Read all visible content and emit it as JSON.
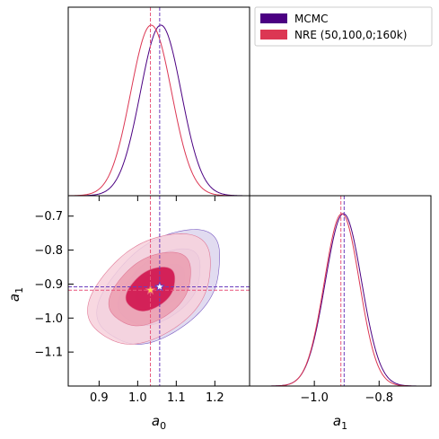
{
  "chart_data": {
    "type": "corner",
    "parameters": [
      "a_0",
      "a_1"
    ],
    "axis_labels": {
      "a0": {
        "base": "a",
        "sub": "0"
      },
      "a1": {
        "base": "a",
        "sub": "1"
      }
    },
    "a0_range": [
      0.82,
      1.29
    ],
    "a1_range": [
      -1.2,
      -0.64
    ],
    "a0_ticks": [
      "0.9",
      "1.0",
      "1.1",
      "1.2"
    ],
    "a0_tick_values": [
      0.9,
      1.0,
      1.1,
      1.2
    ],
    "a1_ticks": [
      "−0.7",
      "−0.8",
      "−0.9",
      "−1.0",
      "−1.1"
    ],
    "a1_tick_values": [
      -0.7,
      -0.8,
      -0.9,
      -1.0,
      -1.1
    ],
    "a1_marginal_ticks": [
      "−1.0",
      "−0.8"
    ],
    "a1_marginal_tick_values": [
      -1.0,
      -0.8
    ],
    "legend_position": "top-right",
    "series": [
      {
        "name": "MCMC",
        "color": "#4b0082",
        "a0_mean": 1.06,
        "a0_sigma": 0.053,
        "a1_mean": -0.91,
        "a1_sigma": 0.056,
        "correlation": 0.45,
        "truth_line": {
          "a0": 1.057,
          "a1": -0.908
        }
      },
      {
        "name": "NRE (50,100,0;160k)",
        "color": "#dc3753",
        "a0_mean": 1.035,
        "a0_sigma": 0.053,
        "a1_mean": -0.915,
        "a1_sigma": 0.054,
        "correlation": 0.4,
        "truth_line": {
          "a0": 1.033,
          "a1": -0.918
        }
      }
    ],
    "truth_point": {
      "a0": 1.06,
      "a1": -0.91
    }
  }
}
